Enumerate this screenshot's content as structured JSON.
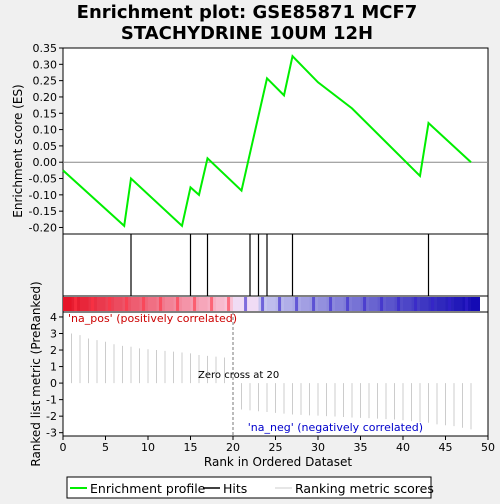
{
  "chart_data": {
    "type": "line",
    "title": [
      "Enrichment plot: GSE85871 MCF7",
      "STACHYDRINE 10UM 12H"
    ],
    "xlabel": "Rank in Ordered Dataset",
    "ylabel_top": "Enrichment score (ES)",
    "ylabel_bottom": "Ranked list metric (PreRanked)",
    "xlim": [
      0,
      50
    ],
    "ylim_top": [
      -0.22,
      0.35
    ],
    "ylim_bottom": [
      -3.2,
      4.3
    ],
    "x_ticks": [
      0,
      5,
      10,
      15,
      20,
      25,
      30,
      35,
      40,
      45,
      50
    ],
    "y_ticks_top": [
      -0.2,
      -0.15,
      -0.1,
      -0.05,
      0.0,
      0.05,
      0.1,
      0.15,
      0.2,
      0.25,
      0.3,
      0.35
    ],
    "y_ticks_bottom": [
      -3,
      -2,
      -1,
      0,
      1,
      2,
      3,
      4
    ],
    "enrichment_profile": {
      "x": [
        0,
        7.2,
        8,
        14,
        15,
        16,
        17,
        21,
        24,
        26,
        27,
        30,
        34,
        42,
        43,
        48
      ],
      "y": [
        -0.025,
        -0.195,
        -0.05,
        -0.195,
        -0.077,
        -0.1,
        0.012,
        -0.087,
        0.257,
        0.205,
        0.325,
        0.245,
        0.165,
        -0.042,
        0.12,
        0.0
      ]
    },
    "hits": [
      8,
      15,
      17,
      22,
      23,
      24,
      27,
      43
    ],
    "ranking_metric": {
      "x": [
        1,
        2,
        3,
        4,
        5,
        6,
        7,
        8,
        9,
        10,
        11,
        12,
        13,
        14,
        15,
        16,
        17,
        18,
        19,
        20,
        21,
        22,
        23,
        24,
        25,
        26,
        27,
        28,
        29,
        30,
        31,
        32,
        33,
        34,
        35,
        36,
        37,
        38,
        39,
        40,
        41,
        42,
        43,
        44,
        45,
        46,
        47,
        48
      ],
      "y": [
        3.0,
        2.9,
        2.7,
        2.6,
        2.5,
        2.35,
        2.25,
        2.2,
        2.1,
        2.05,
        2.0,
        1.95,
        1.9,
        1.85,
        1.8,
        1.7,
        1.65,
        1.6,
        1.55,
        0.0,
        -1.6,
        -1.65,
        -1.7,
        -1.75,
        -1.8,
        -1.85,
        -1.9,
        -1.92,
        -1.95,
        -1.97,
        -2.0,
        -2.02,
        -2.05,
        -2.08,
        -2.1,
        -2.12,
        -2.15,
        -2.18,
        -2.2,
        -2.25,
        -2.3,
        -2.35,
        -2.4,
        -2.5,
        -2.55,
        -2.6,
        -2.7,
        -2.8
      ]
    },
    "zero_cross": {
      "x": 20,
      "label": "Zero cross at 20"
    },
    "pos_label": "'na_pos' (positively correlated)",
    "neg_label": "'na_neg' (negatively correlated)",
    "legend": [
      {
        "label": "Enrichment profile",
        "color": "#00ee00"
      },
      {
        "label": "Hits",
        "color": "#000000"
      },
      {
        "label": "Ranking metric scores",
        "color": "#cccccc"
      }
    ],
    "colors": {
      "profile": "#00ee00",
      "pos_text": "#cc0000",
      "neg_text": "#0000cc"
    }
  }
}
